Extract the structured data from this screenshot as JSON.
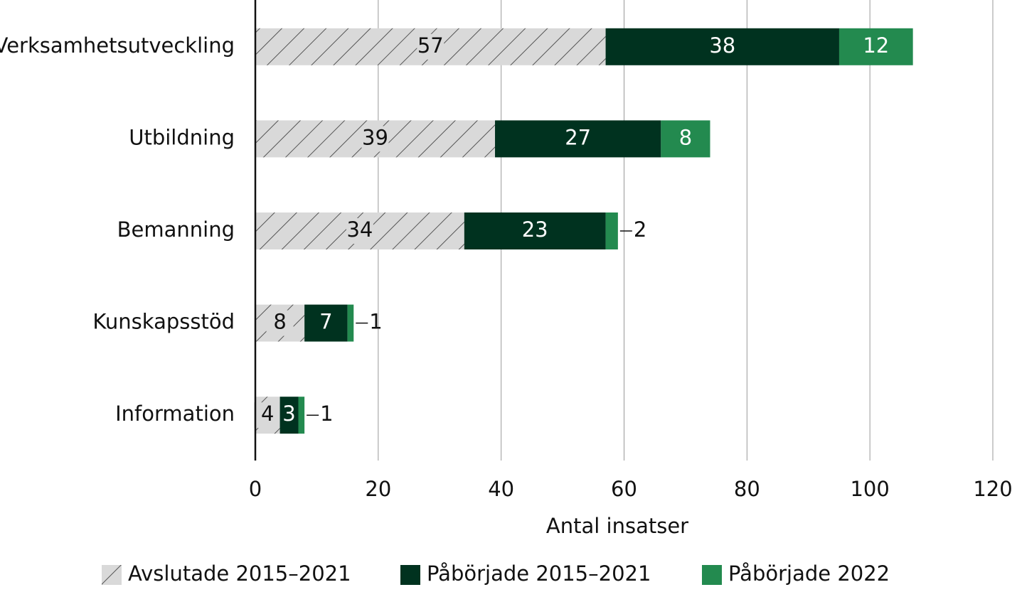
{
  "chart_data": {
    "type": "stacked-barh",
    "categories": [
      "Verksamhetsutveckling",
      "Utbildning",
      "Bemanning",
      "Kunskapsstöd",
      "Information"
    ],
    "series": [
      {
        "name": "Avslutade 2015–2021",
        "color": "#d9d9d9",
        "pattern": "hatch",
        "values": [
          57,
          39,
          34,
          8,
          4
        ]
      },
      {
        "name": "Påbörjade 2015–2021",
        "color": "#00321f",
        "values": [
          38,
          27,
          23,
          7,
          3
        ]
      },
      {
        "name": "Påbörjade 2022",
        "color": "#238a4f",
        "values": [
          12,
          8,
          2,
          1,
          1
        ]
      }
    ],
    "xlabel": "Antal insatser",
    "xlim": [
      0,
      120
    ],
    "xticks": [
      0,
      20,
      40,
      60,
      80,
      100,
      120
    ],
    "grid": true,
    "legend": "bottom"
  }
}
